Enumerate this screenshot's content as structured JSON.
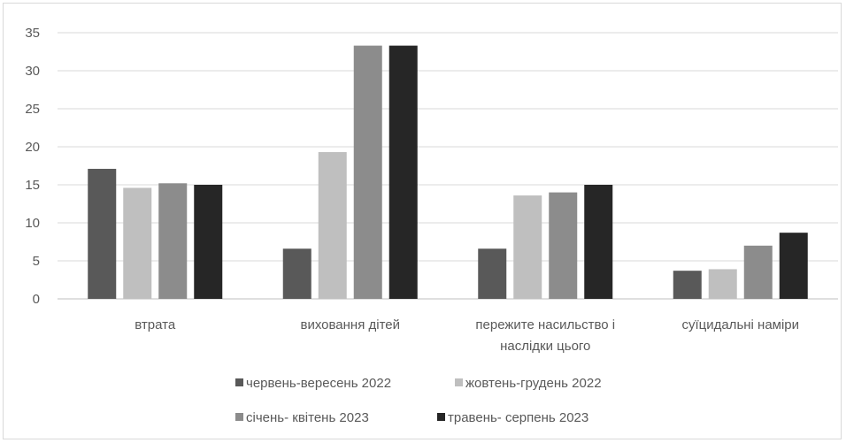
{
  "chart_data": {
    "type": "bar",
    "categories": [
      [
        "втрата"
      ],
      [
        "виховання дітей"
      ],
      [
        "пережите насильство і",
        "наслідки цього"
      ],
      [
        "суїцидальні наміри"
      ]
    ],
    "series": [
      {
        "name": "червень-вересень 2022",
        "color": "#595959",
        "values": [
          17.1,
          6.6,
          6.6,
          3.7
        ]
      },
      {
        "name": "жовтень-грудень 2022",
        "color": "#bfbfbf",
        "values": [
          14.6,
          19.3,
          13.6,
          3.9
        ]
      },
      {
        "name": "січень- квітень 2023",
        "color": "#8c8c8c",
        "values": [
          15.2,
          33.3,
          14.0,
          7.0
        ]
      },
      {
        "name": "травень- серпень 2023",
        "color": "#262626",
        "values": [
          15.0,
          33.3,
          15.0,
          8.7
        ]
      }
    ],
    "ylim": [
      0,
      35
    ],
    "yticks": [
      0,
      5,
      10,
      15,
      20,
      25,
      30,
      35
    ],
    "grid": true,
    "legend": "bottom"
  }
}
